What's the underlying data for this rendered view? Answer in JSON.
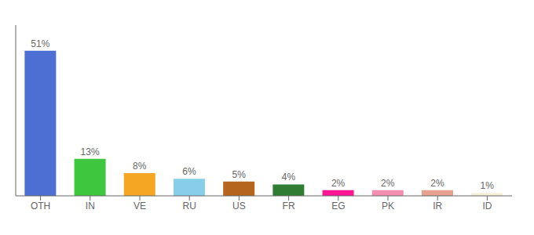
{
  "chart_data": {
    "type": "bar",
    "categories": [
      "OTH",
      "IN",
      "VE",
      "RU",
      "US",
      "FR",
      "EG",
      "PK",
      "IR",
      "ID"
    ],
    "values": [
      51,
      13,
      8,
      6,
      5,
      4,
      2,
      2,
      2,
      1
    ],
    "value_labels": [
      "51%",
      "13%",
      "8%",
      "6%",
      "5%",
      "4%",
      "2%",
      "2%",
      "2%",
      "1%"
    ],
    "data_labels": true,
    "colors": [
      "#4d6fd4",
      "#3ec63e",
      "#f5a623",
      "#87ceeb",
      "#b5651d",
      "#2e7d32",
      "#ff1493",
      "#f48fb1",
      "#e8a090",
      "#f5f0d8"
    ],
    "ylim": [
      0,
      60
    ],
    "tick_labels": "x",
    "grid": false
  }
}
